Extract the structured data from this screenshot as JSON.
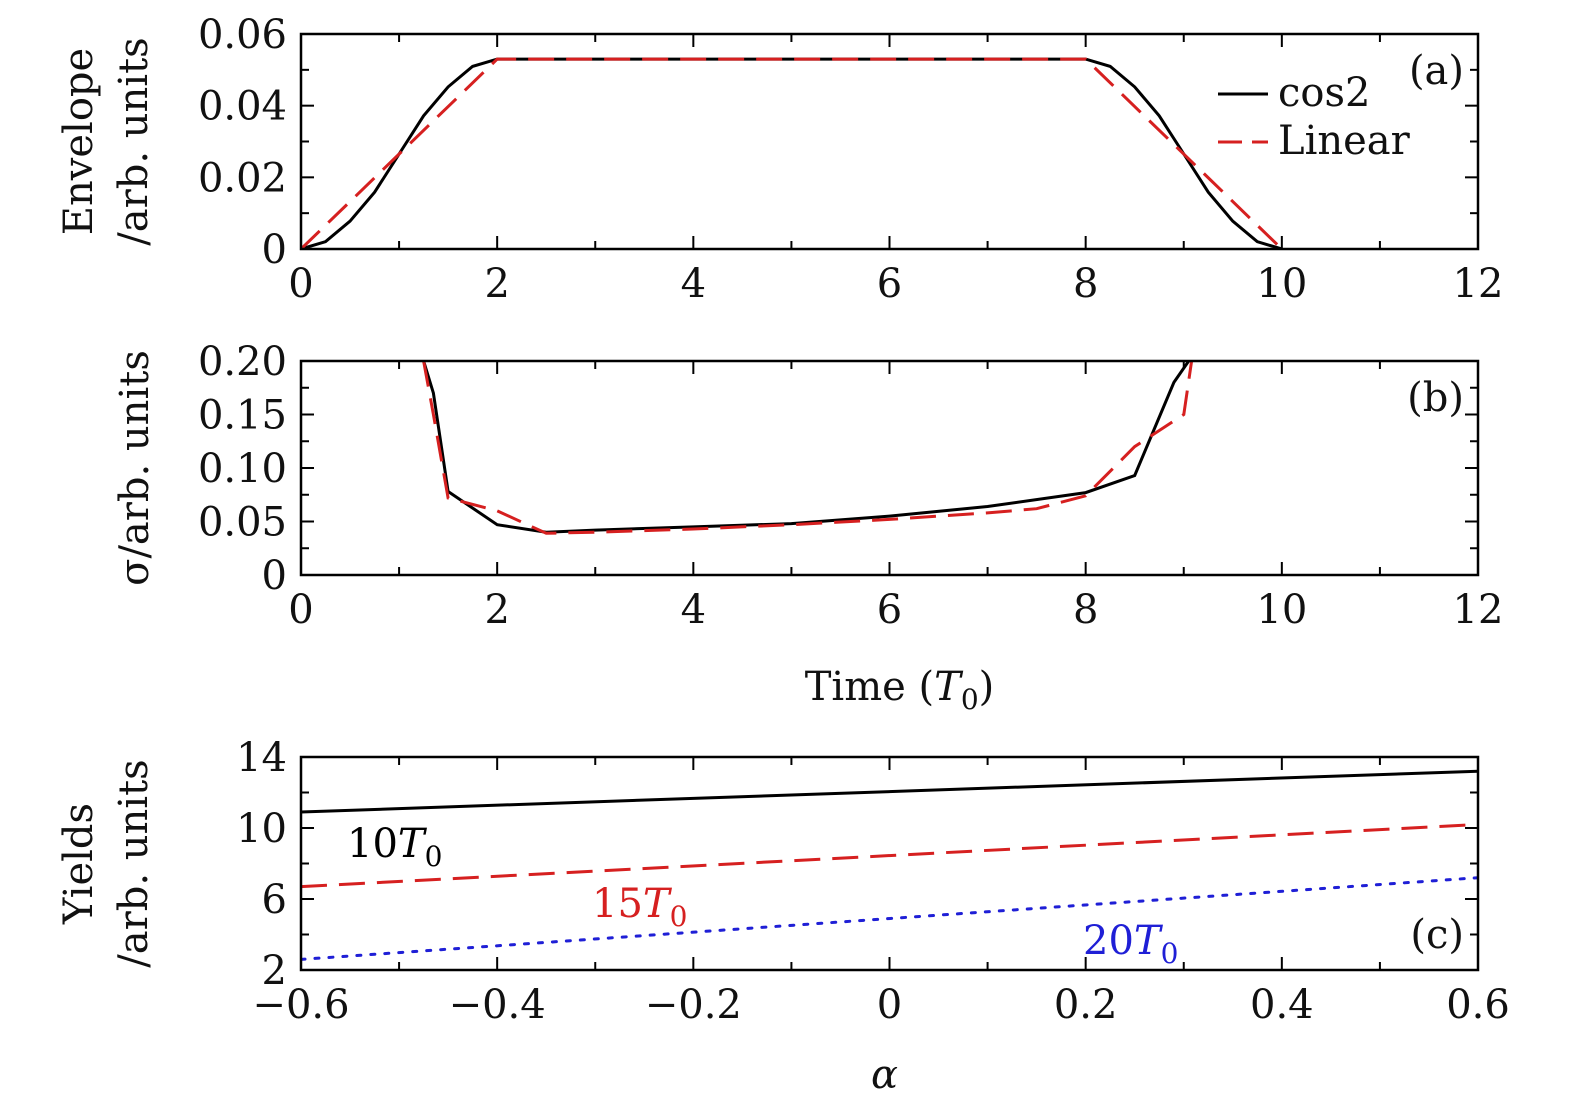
{
  "chart_data": [
    {
      "type": "line",
      "panel_label": "(a)",
      "xlabel": "",
      "ylabel_lines": [
        "Envelope",
        "/arb. units"
      ],
      "xlim": [
        0,
        12
      ],
      "ylim": [
        0,
        0.06
      ],
      "xticks": [
        0,
        2,
        4,
        6,
        8,
        10,
        12
      ],
      "xtick_labels": [
        "0",
        "2",
        "4",
        "6",
        "8",
        "10",
        "12"
      ],
      "yticks": [
        0,
        0.02,
        0.04,
        0.06
      ],
      "ytick_labels": [
        "0",
        "0.02",
        "0.04",
        "0.06"
      ],
      "x_minor_step": 1,
      "y_minor_step": 0.01,
      "legend": {
        "placement": "top-right"
      },
      "series": [
        {
          "name": "cos2",
          "color": "#000000",
          "dash": "solid",
          "x": [
            0,
            0.25,
            0.5,
            0.75,
            1,
            1.25,
            1.5,
            1.75,
            2,
            8,
            8.25,
            8.5,
            8.75,
            9,
            9.25,
            9.5,
            9.75,
            10
          ],
          "y": [
            0,
            0.00203,
            0.00776,
            0.01584,
            0.0265,
            0.03716,
            0.04524,
            0.05097,
            0.053,
            0.053,
            0.05097,
            0.04524,
            0.03716,
            0.0265,
            0.01584,
            0.00776,
            0.00203,
            0
          ]
        },
        {
          "name": "Linear",
          "color": "#d62020",
          "dash": "long",
          "x": [
            0,
            2,
            8,
            10
          ],
          "y": [
            0,
            0.053,
            0.053,
            0
          ]
        }
      ]
    },
    {
      "type": "line",
      "panel_label": "(b)",
      "xlabel": "Time (T₀)",
      "ylabel_lines": [
        "σ/arb. units"
      ],
      "xlim": [
        0,
        12
      ],
      "ylim": [
        0,
        0.2
      ],
      "xticks": [
        0,
        2,
        4,
        6,
        8,
        10,
        12
      ],
      "xtick_labels": [
        "0",
        "2",
        "4",
        "6",
        "8",
        "10",
        "12"
      ],
      "yticks": [
        0,
        0.05,
        0.1,
        0.15,
        0.2
      ],
      "ytick_labels": [
        "0",
        "0.05",
        "0.10",
        "0.15",
        "0.20"
      ],
      "x_minor_step": 1,
      "y_minor_step": 0.025,
      "series": [
        {
          "name": "cos2",
          "color": "#000000",
          "dash": "solid",
          "x": [
            1.25,
            1.35,
            1.5,
            2,
            2.5,
            3,
            4,
            5,
            6,
            7,
            8,
            8.5,
            8.9,
            9.05
          ],
          "y": [
            0.2,
            0.17,
            0.078,
            0.047,
            0.04,
            0.042,
            0.045,
            0.048,
            0.055,
            0.064,
            0.077,
            0.093,
            0.18,
            0.2
          ]
        },
        {
          "name": "Linear",
          "color": "#d62020",
          "dash": "long",
          "x": [
            1.25,
            1.35,
            1.5,
            2,
            2.5,
            3,
            4,
            5,
            6,
            6.5,
            7,
            7.5,
            8,
            8.5,
            9,
            9.08
          ],
          "y": [
            0.2,
            0.15,
            0.072,
            0.06,
            0.039,
            0.04,
            0.043,
            0.047,
            0.052,
            0.055,
            0.058,
            0.062,
            0.074,
            0.12,
            0.15,
            0.2
          ]
        }
      ]
    },
    {
      "type": "line",
      "panel_label": "(c)",
      "xlabel": "α",
      "ylabel_lines": [
        "Yields",
        "/arb. units"
      ],
      "xlim": [
        -0.6,
        0.6
      ],
      "ylim": [
        2,
        14
      ],
      "xticks": [
        -0.6,
        -0.4,
        -0.2,
        0,
        0.2,
        0.4,
        0.6
      ],
      "xtick_labels": [
        "−0.6",
        "−0.4",
        "−0.2",
        "0",
        "0.2",
        "0.4",
        "0.6"
      ],
      "yticks": [
        2,
        6,
        10,
        14
      ],
      "ytick_labels": [
        "2",
        "6",
        "10",
        "14"
      ],
      "x_minor_step": 0.1,
      "y_minor_step": 2,
      "series": [
        {
          "name": "10T₀",
          "label_text": "10",
          "label_sub": "0",
          "color": "#000000",
          "dash": "solid",
          "x": [
            -0.6,
            0.6
          ],
          "y": [
            10.9,
            13.2
          ]
        },
        {
          "name": "15T₀",
          "label_text": "15",
          "label_sub": "0",
          "color": "#d62020",
          "dash": "long",
          "x": [
            -0.6,
            0.6
          ],
          "y": [
            6.7,
            10.2
          ]
        },
        {
          "name": "20T₀",
          "label_text": "20",
          "label_sub": "0",
          "color": "#1f1fd6",
          "dash": "dot",
          "x": [
            -0.6,
            0.6
          ],
          "y": [
            2.6,
            7.2
          ]
        }
      ]
    }
  ]
}
